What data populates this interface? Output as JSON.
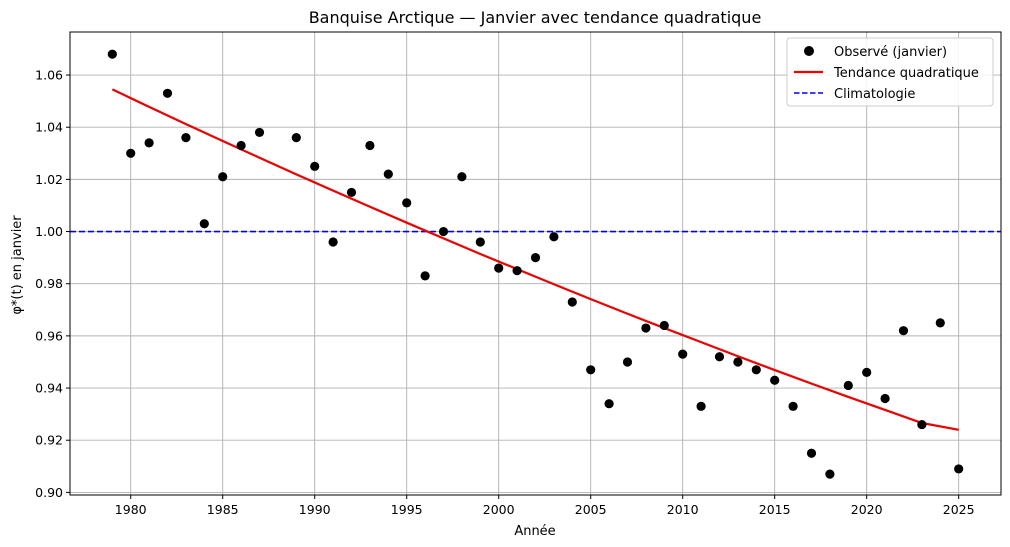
{
  "chart_data": {
    "type": "scatter",
    "title": "Banquise Arctique — Janvier avec tendance quadratique",
    "xlabel": "Année",
    "ylabel": "φ*(t) en janvier",
    "xlim": [
      1976.7,
      2027.3
    ],
    "ylim": [
      0.899,
      1.0765
    ],
    "x_ticks": [
      1980,
      1985,
      1990,
      1995,
      2000,
      2005,
      2010,
      2015,
      2020,
      2025
    ],
    "y_ticks": [
      0.9,
      0.92,
      0.94,
      0.96,
      0.98,
      1.0,
      1.02,
      1.04,
      1.06
    ],
    "y_tick_labels": [
      "0.90",
      "0.92",
      "0.94",
      "0.96",
      "0.98",
      "1.00",
      "1.02",
      "1.04",
      "1.06"
    ],
    "grid": true,
    "legend_position": "top-right",
    "series": [
      {
        "name": "Observé (janvier)",
        "kind": "scatter",
        "color": "#000000",
        "x": [
          1979,
          1980,
          1981,
          1982,
          1983,
          1984,
          1985,
          1986,
          1987,
          1989,
          1990,
          1991,
          1992,
          1993,
          1994,
          1995,
          1996,
          1997,
          1998,
          1999,
          2000,
          2001,
          2002,
          2003,
          2004,
          2005,
          2006,
          2007,
          2008,
          2009,
          2010,
          2011,
          2012,
          2013,
          2014,
          2015,
          2016,
          2017,
          2018,
          2019,
          2020,
          2021,
          2022,
          2023,
          2024,
          2025
        ],
        "y": [
          1.068,
          1.03,
          1.034,
          1.053,
          1.036,
          1.003,
          1.021,
          1.033,
          1.038,
          1.036,
          1.025,
          0.996,
          1.015,
          1.033,
          1.022,
          1.011,
          0.983,
          1.0,
          1.021,
          0.996,
          0.986,
          0.985,
          0.99,
          0.998,
          0.973,
          0.947,
          0.934,
          0.95,
          0.963,
          0.964,
          0.953,
          0.933,
          0.952,
          0.95,
          0.947,
          0.943,
          0.933,
          0.915,
          0.907,
          0.941,
          0.946,
          0.936,
          0.962,
          0.926,
          0.965,
          0.909
        ]
      },
      {
        "name": "Tendance quadratique",
        "kind": "line",
        "color": "#ee0000",
        "x": [
          1979,
          1981,
          1983,
          1985,
          1987,
          1989,
          1991,
          1993,
          1995,
          1997,
          1999,
          2001,
          2003,
          2005,
          2007,
          2009,
          2011,
          2013,
          2015,
          2017,
          2019,
          2021,
          2023,
          2025
        ],
        "y": [
          1.0545,
          1.0478,
          1.0412,
          1.0347,
          1.0283,
          1.0219,
          1.0157,
          1.0095,
          1.0034,
          0.9974,
          0.9914,
          0.9856,
          0.9798,
          0.9741,
          0.9685,
          0.963,
          0.9576,
          0.9522,
          0.9469,
          0.9417,
          0.9366,
          0.9316,
          0.9266,
          0.924
        ]
      },
      {
        "name": "Climatologie",
        "kind": "hline",
        "color": "#0000ee",
        "y": 1.0
      }
    ]
  }
}
